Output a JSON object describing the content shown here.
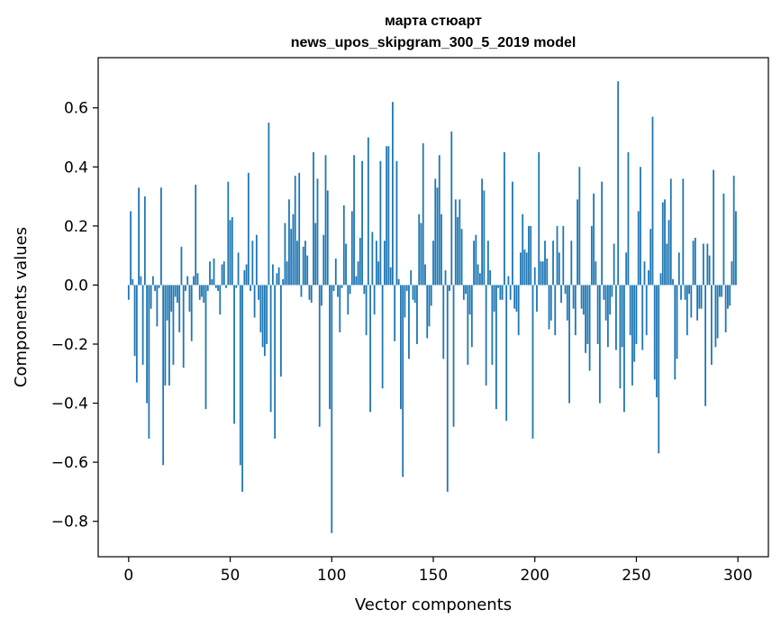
{
  "chart_data": {
    "type": "bar",
    "title": [
      "марта стюарт",
      "news_upos_skipgram_300_5_2019 model"
    ],
    "xlabel": "Vector components",
    "ylabel": "Components values",
    "xlim": [
      -15,
      315
    ],
    "ylim": [
      -0.92,
      0.77
    ],
    "xticks": [
      0,
      50,
      100,
      150,
      200,
      250,
      300
    ],
    "xtick_labels": [
      "0",
      "50",
      "100",
      "150",
      "200",
      "250",
      "300"
    ],
    "yticks": [
      -0.8,
      -0.6,
      -0.4,
      -0.2,
      0.0,
      0.2,
      0.4,
      0.6
    ],
    "ytick_labels": [
      "−0.8",
      "−0.6",
      "−0.4",
      "−0.2",
      "0.0",
      "0.2",
      "0.4",
      "0.6"
    ],
    "bar_color": "#1f77b4",
    "grid": false,
    "series": [
      {
        "name": "components",
        "values": [
          -0.05,
          0.25,
          0.02,
          -0.24,
          -0.33,
          0.33,
          0.03,
          -0.27,
          0.3,
          -0.4,
          -0.52,
          -0.08,
          0.03,
          -0.02,
          -0.14,
          -0.01,
          0.33,
          -0.61,
          -0.34,
          -0.12,
          -0.34,
          -0.09,
          -0.27,
          -0.04,
          -0.06,
          -0.16,
          0.13,
          -0.28,
          -0.02,
          0.03,
          -0.09,
          -0.19,
          0.03,
          0.34,
          0.04,
          -0.05,
          -0.04,
          -0.06,
          -0.42,
          -0.02,
          0.08,
          0.02,
          0.09,
          -0.01,
          -0.02,
          -0.1,
          0.07,
          0.08,
          -0.01,
          0.35,
          0.22,
          0.23,
          -0.47,
          -0.01,
          0.11,
          -0.61,
          -0.7,
          0.05,
          0.07,
          0.38,
          -0.02,
          0.15,
          -0.11,
          0.17,
          -0.05,
          -0.16,
          -0.21,
          -0.24,
          -0.2,
          0.55,
          -0.43,
          0.07,
          -0.52,
          0.04,
          0.06,
          -0.31,
          0.02,
          0.21,
          0.08,
          0.29,
          0.19,
          0.24,
          0.37,
          0.15,
          0.38,
          -0.04,
          0.13,
          0.15,
          0.1,
          -0.05,
          -0.06,
          0.45,
          0.21,
          0.36,
          -0.48,
          -0.07,
          0.17,
          0.44,
          0.32,
          -0.42,
          -0.84,
          -0.02,
          0.09,
          -0.04,
          -0.16,
          -0.01,
          0.27,
          0.14,
          -0.1,
          -0.03,
          0.25,
          0.44,
          0.03,
          0.08,
          0.16,
          0.42,
          -0.03,
          -0.17,
          0.5,
          -0.43,
          0.18,
          -0.1,
          0.15,
          0.08,
          0.42,
          -0.35,
          0.15,
          0.47,
          0.47,
          0.06,
          0.62,
          -0.19,
          0.42,
          0.02,
          -0.42,
          -0.65,
          -0.11,
          -0.02,
          -0.25,
          0.05,
          -0.05,
          -0.06,
          -0.2,
          0.24,
          0.21,
          0.48,
          0.07,
          -0.18,
          -0.14,
          -0.07,
          0.15,
          0.36,
          0.33,
          0.44,
          0.24,
          -0.25,
          0.05,
          -0.7,
          -0.02,
          0.52,
          -0.48,
          0.29,
          0.23,
          0.29,
          0.19,
          -0.05,
          -0.03,
          -0.27,
          -0.1,
          -0.21,
          0.15,
          0.17,
          0.07,
          0.04,
          0.36,
          0.32,
          -0.34,
          0.15,
          0.05,
          -0.27,
          -0.09,
          -0.42,
          -0.01,
          -0.05,
          -0.05,
          0.45,
          -0.46,
          0.03,
          -0.05,
          0.35,
          -0.08,
          -0.09,
          -0.17,
          0.11,
          0.24,
          0.12,
          0.11,
          0.2,
          0.2,
          -0.52,
          0.06,
          -0.09,
          0.45,
          0.08,
          0.08,
          0.15,
          0.09,
          -0.15,
          -0.12,
          0.15,
          -0.17,
          0.2,
          0.11,
          -0.06,
          0.2,
          -0.03,
          -0.12,
          -0.4,
          0.15,
          -0.08,
          -0.17,
          0.29,
          0.4,
          -0.08,
          -0.1,
          -0.23,
          -0.2,
          -0.29,
          0.2,
          0.31,
          0.08,
          -0.2,
          -0.4,
          0.35,
          -0.05,
          -0.12,
          -0.21,
          -0.1,
          -0.04,
          0.14,
          -0.22,
          0.69,
          -0.35,
          -0.21,
          -0.43,
          0.11,
          0.45,
          -0.17,
          -0.34,
          -0.26,
          -0.2,
          0.25,
          0.4,
          -0.22,
          0.08,
          -0.17,
          0.05,
          0.19,
          0.57,
          -0.32,
          -0.38,
          -0.57,
          0.04,
          0.28,
          0.29,
          0.14,
          0.22,
          0.36,
          0.02,
          -0.32,
          -0.25,
          0.11,
          -0.05,
          0.36,
          -0.05,
          -0.17,
          -0.03,
          -0.11,
          0.15,
          0.16,
          -0.12,
          -0.08,
          -0.08,
          0.14,
          -0.41,
          0.14,
          0.1,
          -0.27,
          0.39,
          -0.21,
          -0.18,
          -0.04,
          -0.04,
          0.31,
          -0.16,
          -0.08,
          -0.07,
          0.08,
          0.37,
          0.25
        ]
      }
    ]
  }
}
